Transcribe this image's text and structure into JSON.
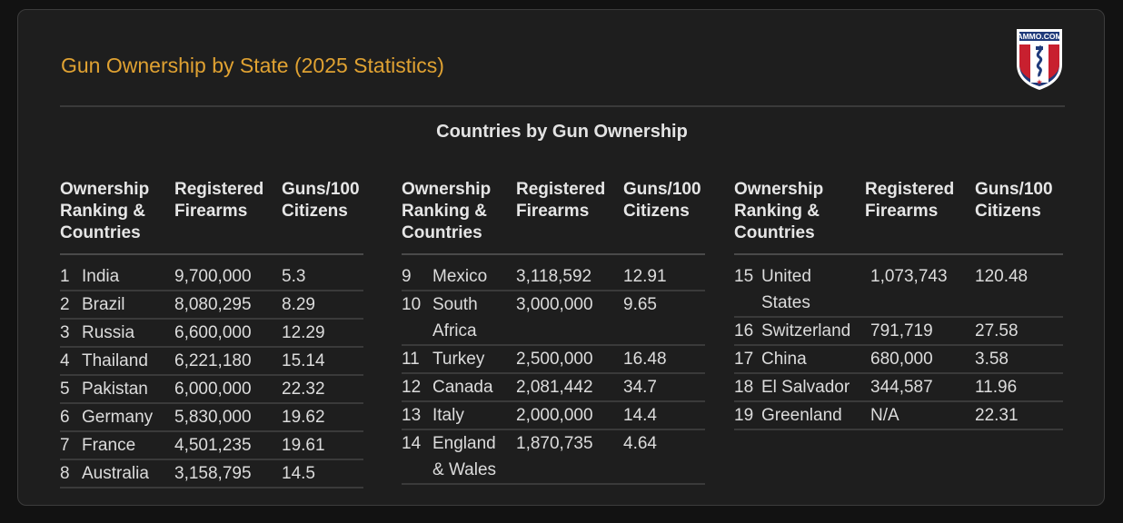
{
  "title": "Gun Ownership by State (2025 Statistics)",
  "subtitle": "Countries by Gun Ownership",
  "logo_text": "AMMO.COM",
  "headers": {
    "col1": "Ownership\nRanking &\nCountries",
    "col2": "Registered\nFirearms",
    "col3": "Guns/100\nCitizens"
  },
  "tables": [
    {
      "rows": [
        {
          "rank": "1",
          "country": "India",
          "firearms": "9,700,000",
          "per100": "5.3"
        },
        {
          "rank": "2",
          "country": "Brazil",
          "firearms": "8,080,295",
          "per100": "8.29"
        },
        {
          "rank": "3",
          "country": "Russia",
          "firearms": "6,600,000",
          "per100": "12.29"
        },
        {
          "rank": "4",
          "country": "Thailand",
          "firearms": "6,221,180",
          "per100": "15.14"
        },
        {
          "rank": "5",
          "country": "Pakistan",
          "firearms": "6,000,000",
          "per100": "22.32"
        },
        {
          "rank": "6",
          "country": "Germany",
          "firearms": "5,830,000",
          "per100": "19.62"
        },
        {
          "rank": "7",
          "country": "France",
          "firearms": "4,501,235",
          "per100": "19.61"
        },
        {
          "rank": "8",
          "country": "Australia",
          "firearms": "3,158,795",
          "per100": "14.5"
        }
      ]
    },
    {
      "rows": [
        {
          "rank": "9",
          "country": "Mexico",
          "firearms": "3,118,592",
          "per100": "12.91"
        },
        {
          "rank": "10",
          "country": "South\nAfrica",
          "firearms": "3,000,000",
          "per100": "9.65"
        },
        {
          "rank": "11",
          "country": "Turkey",
          "firearms": "2,500,000",
          "per100": "16.48"
        },
        {
          "rank": "12",
          "country": "Canada",
          "firearms": "2,081,442",
          "per100": "34.7"
        },
        {
          "rank": "13",
          "country": "Italy",
          "firearms": "2,000,000",
          "per100": "14.4"
        },
        {
          "rank": "14",
          "country": "England\n& Wales",
          "firearms": "1,870,735",
          "per100": "4.64"
        }
      ]
    },
    {
      "rows": [
        {
          "rank": "15",
          "country": "United\nStates",
          "firearms": "1,073,743",
          "per100": "120.48"
        },
        {
          "rank": "16",
          "country": "Switzerland",
          "firearms": "791,719",
          "per100": "27.58"
        },
        {
          "rank": "17",
          "country": "China",
          "firearms": "680,000",
          "per100": "3.58"
        },
        {
          "rank": "18",
          "country": "El Salvador",
          "firearms": "344,587",
          "per100": "11.96"
        },
        {
          "rank": "19",
          "country": "Greenland",
          "firearms": "N/A",
          "per100": "22.31"
        }
      ]
    }
  ]
}
